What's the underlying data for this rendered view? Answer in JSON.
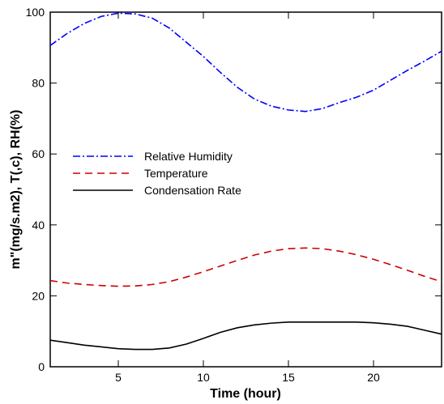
{
  "chart_data": {
    "type": "line",
    "title": "",
    "xlabel": "Time (hour)",
    "ylabel": "m\"(mg/s.m2), T(,c), RH(%)",
    "xlim": [
      1,
      24
    ],
    "ylim": [
      0,
      100
    ],
    "xticks": [
      5,
      10,
      15,
      20
    ],
    "yticks": [
      0,
      20,
      40,
      60,
      80,
      100
    ],
    "grid": false,
    "legend_position": "middle-left",
    "series": [
      {
        "name": "Relative Humidity",
        "color": "#0000ff",
        "dash": "dash-dot",
        "x": [
          1,
          2,
          3,
          4,
          5,
          6,
          7,
          8,
          9,
          10,
          11,
          12,
          13,
          14,
          15,
          16,
          17,
          18,
          19,
          20,
          21,
          22,
          23,
          24
        ],
        "y": [
          90.6,
          94,
          96.8,
          98.8,
          99.7,
          99.5,
          98.3,
          95.5,
          91.5,
          87.5,
          83,
          78.8,
          75.5,
          73.5,
          72.4,
          72,
          72.8,
          74.5,
          76,
          78,
          80.8,
          83.6,
          86.2,
          89
        ]
      },
      {
        "name": "Temperature",
        "color": "#cc0000",
        "dash": "dashed",
        "x": [
          1,
          2,
          3,
          4,
          5,
          6,
          7,
          8,
          9,
          10,
          11,
          12,
          13,
          14,
          15,
          16,
          17,
          18,
          19,
          20,
          21,
          22,
          23,
          24
        ],
        "y": [
          24.3,
          23.6,
          23.2,
          22.9,
          22.7,
          22.8,
          23.2,
          24,
          25.3,
          26.8,
          28.4,
          30,
          31.5,
          32.6,
          33.3,
          33.5,
          33.3,
          32.6,
          31.6,
          30.3,
          28.8,
          27.2,
          25.5,
          24
        ]
      },
      {
        "name": "Condensation Rate",
        "color": "#000000",
        "dash": "solid",
        "x": [
          1,
          2,
          3,
          4,
          5,
          6,
          7,
          8,
          9,
          10,
          11,
          12,
          13,
          14,
          15,
          16,
          17,
          18,
          19,
          20,
          21,
          22,
          23,
          24
        ],
        "y": [
          7.5,
          6.8,
          6.1,
          5.6,
          5.1,
          4.9,
          4.9,
          5.3,
          6.4,
          8,
          9.7,
          11,
          11.8,
          12.3,
          12.6,
          12.6,
          12.6,
          12.6,
          12.6,
          12.4,
          12,
          11.4,
          10.3,
          9.2
        ]
      }
    ]
  }
}
